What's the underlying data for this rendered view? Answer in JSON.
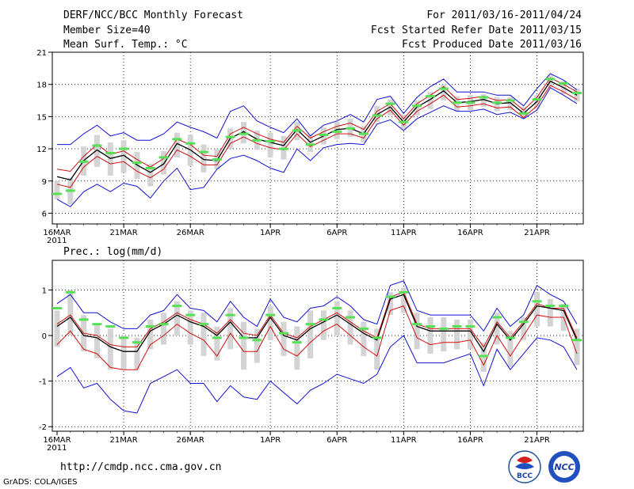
{
  "header": {
    "title": "DERF/NCC/BCC Monthly Forecast",
    "member": "Member Size=40",
    "variable1": "Mean Surf. Temp.: °C",
    "period": "For 2011/03/16-2011/04/24",
    "started": "Fcst Started Refer Date 2011/03/15",
    "produced": "Fcst Produced Date 2011/03/16"
  },
  "footer": {
    "url": "http://cmdp.ncc.cma.gov.cn",
    "grads": "GrADS: COLA/IGES",
    "logo1_text": "BCC",
    "logo2_text": "NCC"
  },
  "colors": {
    "envelope": "#1010d0",
    "spread": "#d01010",
    "mean": "#000000",
    "box": "#d4d4d4",
    "observed": "#55e055",
    "grid": "#000000"
  },
  "chart_data": [
    {
      "type": "line",
      "title": "Mean Surf. Temp.: °C",
      "xlabel": "",
      "ylabel": "°C",
      "ylim": [
        5,
        21
      ],
      "yticks": [
        6,
        9,
        12,
        15,
        18,
        21
      ],
      "x_tick_labels": [
        "16MAR\n2011",
        "21MAR",
        "26MAR",
        "1APR",
        "6APR",
        "11APR",
        "16APR",
        "21APR"
      ],
      "x_tick_days": [
        0,
        5,
        10,
        16,
        21,
        26,
        31,
        36
      ],
      "days": 40,
      "series": [
        {
          "name": "ensemble max",
          "values": [
            12.4,
            12.4,
            13.4,
            14.2,
            13.2,
            13.5,
            12.8,
            12.8,
            13.4,
            14.5,
            14.0,
            13.6,
            13.0,
            15.5,
            16.0,
            14.6,
            14.0,
            13.5,
            14.8,
            13.2,
            14.2,
            14.6,
            15.2,
            14.5,
            16.6,
            16.9,
            15.3,
            16.8,
            17.8,
            18.5,
            17.3,
            17.3,
            17.3,
            17.0,
            17.0,
            16.0,
            17.6,
            19.0,
            18.4,
            17.5
          ]
        },
        {
          "name": "upper spread",
          "values": [
            10.1,
            9.9,
            11.3,
            12.4,
            11.5,
            11.8,
            11.0,
            10.3,
            11.1,
            12.9,
            12.4,
            11.4,
            11.3,
            13.4,
            14.0,
            13.4,
            12.9,
            12.6,
            14.1,
            13.0,
            13.6,
            14.1,
            14.4,
            13.8,
            15.5,
            16.2,
            14.8,
            16.2,
            17.0,
            17.8,
            16.6,
            16.7,
            16.9,
            16.5,
            16.6,
            15.6,
            16.8,
            18.6,
            18.0,
            17.3
          ]
        },
        {
          "name": "ensemble mean",
          "values": [
            9.4,
            9.1,
            10.9,
            11.9,
            11.1,
            11.4,
            10.5,
            9.8,
            10.6,
            12.5,
            11.9,
            11.0,
            10.9,
            13.0,
            13.6,
            12.9,
            12.6,
            12.3,
            13.8,
            12.6,
            13.2,
            13.8,
            13.9,
            13.4,
            15.2,
            15.9,
            14.5,
            15.9,
            16.6,
            17.4,
            16.3,
            16.4,
            16.6,
            16.2,
            16.3,
            15.3,
            16.4,
            18.3,
            17.7,
            17.0
          ]
        },
        {
          "name": "lower spread",
          "values": [
            8.7,
            8.4,
            10.3,
            11.3,
            10.6,
            10.8,
            9.9,
            9.3,
            10.1,
            11.9,
            11.3,
            10.5,
            10.5,
            12.5,
            13.1,
            12.5,
            12.1,
            11.9,
            13.4,
            12.2,
            12.8,
            13.4,
            13.4,
            13.0,
            14.8,
            15.6,
            14.2,
            15.5,
            16.2,
            17.0,
            15.9,
            16.0,
            16.2,
            15.8,
            15.9,
            14.9,
            16.0,
            17.9,
            17.3,
            16.6
          ]
        },
        {
          "name": "ensemble min",
          "values": [
            7.3,
            6.6,
            8.0,
            8.7,
            8.0,
            8.8,
            8.5,
            7.4,
            9.0,
            10.2,
            8.2,
            8.4,
            10.1,
            11.1,
            11.4,
            10.9,
            10.2,
            9.8,
            12.0,
            10.9,
            12.1,
            12.4,
            12.5,
            12.4,
            14.3,
            14.7,
            13.7,
            14.8,
            15.4,
            16.0,
            15.5,
            15.5,
            15.7,
            15.2,
            15.4,
            14.8,
            15.6,
            17.7,
            17.0,
            16.2
          ]
        },
        {
          "name": "box high",
          "values": [
            9.0,
            9.3,
            12.2,
            13.3,
            12.6,
            12.8,
            11.7,
            10.6,
            11.8,
            13.5,
            13.3,
            12.4,
            12.0,
            13.9,
            14.5,
            13.7,
            13.5,
            13.2,
            14.5,
            13.3,
            14.0,
            14.5,
            14.8,
            14.1,
            16.0,
            16.6,
            15.2,
            16.5,
            17.3,
            18.0,
            16.9,
            17.0,
            17.1,
            16.8,
            16.8,
            15.9,
            17.0,
            18.9,
            18.3,
            17.6
          ]
        },
        {
          "name": "box low",
          "values": [
            7.3,
            6.8,
            9.5,
            10.3,
            9.5,
            9.8,
            9.2,
            8.5,
            9.6,
            11.2,
            10.4,
            9.8,
            10.1,
            12.0,
            12.5,
            11.9,
            11.2,
            11.0,
            12.8,
            11.7,
            12.4,
            12.9,
            13.1,
            12.6,
            14.5,
            15.1,
            13.8,
            15.1,
            15.7,
            16.5,
            15.5,
            15.6,
            15.9,
            15.5,
            15.6,
            14.8,
            15.7,
            17.8,
            17.1,
            16.4
          ]
        },
        {
          "name": "observed",
          "values": [
            7.8,
            8.1,
            10.8,
            12.3,
            11.6,
            12.0,
            10.7,
            10.2,
            11.2,
            12.9,
            12.5,
            11.7,
            11.0,
            13.1,
            13.4,
            12.8,
            12.7,
            12.0,
            13.7,
            12.4,
            13.3,
            13.6,
            13.9,
            13.4,
            15.1,
            16.2,
            14.5,
            16.0,
            16.9,
            17.6,
            16.3,
            16.3,
            16.8,
            16.3,
            16.5,
            15.3,
            16.6,
            18.5,
            18.1,
            17.2
          ]
        }
      ]
    },
    {
      "type": "line",
      "title": "Prec.: log(mm/d)",
      "xlabel": "",
      "ylabel": "log(mm/d)",
      "ylim": [
        -2.1,
        1.65
      ],
      "yticks": [
        -2,
        -1,
        0,
        1
      ],
      "x_tick_labels": [
        "16MAR\n2011",
        "21MAR",
        "26MAR",
        "1APR",
        "6APR",
        "11APR",
        "16APR",
        "21APR"
      ],
      "x_tick_days": [
        0,
        5,
        10,
        16,
        21,
        26,
        31,
        36
      ],
      "days": 40,
      "series": [
        {
          "name": "ensemble max",
          "values": [
            0.7,
            0.9,
            0.5,
            0.5,
            0.3,
            0.15,
            0.15,
            0.45,
            0.55,
            0.9,
            0.6,
            0.55,
            0.3,
            0.75,
            0.4,
            0.2,
            0.8,
            0.4,
            0.3,
            0.6,
            0.65,
            0.85,
            0.65,
            0.35,
            0.25,
            1.1,
            1.2,
            0.55,
            0.45,
            0.45,
            0.45,
            0.45,
            0.1,
            0.6,
            0.2,
            0.45,
            1.1,
            0.9,
            0.75,
            0.25
          ]
        },
        {
          "name": "upper spread",
          "values": [
            0.25,
            0.45,
            0.05,
            0.0,
            -0.2,
            -0.25,
            -0.25,
            0.15,
            0.3,
            0.5,
            0.35,
            0.25,
            0.05,
            0.35,
            0.05,
            0.0,
            0.45,
            0.05,
            -0.05,
            0.2,
            0.35,
            0.5,
            0.3,
            0.1,
            -0.05,
            0.85,
            0.95,
            0.25,
            0.15,
            0.15,
            0.15,
            0.15,
            -0.25,
            0.3,
            -0.05,
            0.3,
            0.7,
            0.6,
            0.6,
            -0.05
          ]
        },
        {
          "name": "ensemble mean",
          "values": [
            0.2,
            0.4,
            0.0,
            -0.05,
            -0.25,
            -0.35,
            -0.35,
            0.1,
            0.25,
            0.45,
            0.3,
            0.2,
            0.0,
            0.3,
            -0.05,
            -0.05,
            0.4,
            0.0,
            -0.1,
            0.15,
            0.3,
            0.45,
            0.25,
            0.05,
            -0.1,
            0.8,
            0.9,
            0.2,
            0.1,
            0.1,
            0.1,
            0.1,
            -0.35,
            0.25,
            -0.1,
            0.25,
            0.65,
            0.6,
            0.55,
            -0.1
          ]
        },
        {
          "name": "lower spread",
          "values": [
            -0.2,
            0.1,
            -0.3,
            -0.4,
            -0.7,
            -0.75,
            -0.75,
            -0.2,
            0.0,
            0.25,
            0.05,
            -0.1,
            -0.45,
            0.05,
            -0.35,
            -0.35,
            0.2,
            -0.3,
            -0.45,
            -0.15,
            0.1,
            0.25,
            0.0,
            -0.25,
            -0.45,
            0.55,
            0.65,
            -0.05,
            -0.2,
            -0.15,
            -0.15,
            -0.1,
            -0.65,
            0.0,
            -0.45,
            0.0,
            0.45,
            0.4,
            0.4,
            -0.4
          ]
        },
        {
          "name": "ensemble min",
          "values": [
            -0.9,
            -0.7,
            -1.15,
            -1.05,
            -1.4,
            -1.65,
            -1.7,
            -1.05,
            -0.9,
            -0.75,
            -1.05,
            -1.05,
            -1.45,
            -1.1,
            -1.35,
            -1.4,
            -1.0,
            -1.25,
            -1.5,
            -1.2,
            -1.05,
            -0.85,
            -0.95,
            -1.05,
            -0.85,
            -0.25,
            -0.0,
            -0.6,
            -0.6,
            -0.6,
            -0.5,
            -0.4,
            -1.1,
            -0.3,
            -0.75,
            -0.4,
            -0.05,
            -0.1,
            -0.25,
            -0.75
          ]
        },
        {
          "name": "box high",
          "values": [
            0.55,
            1.0,
            0.45,
            0.25,
            0.15,
            0.0,
            -0.05,
            0.35,
            0.5,
            0.75,
            0.55,
            0.5,
            0.2,
            0.6,
            0.3,
            0.15,
            0.65,
            0.3,
            0.2,
            0.55,
            0.55,
            0.75,
            0.55,
            0.3,
            0.15,
            0.95,
            1.05,
            0.5,
            0.4,
            0.4,
            0.35,
            0.35,
            -0.15,
            0.5,
            0.1,
            0.4,
            0.95,
            0.8,
            0.7,
            0.15
          ]
        },
        {
          "name": "box low",
          "values": [
            -0.25,
            0.0,
            -0.35,
            -0.5,
            -0.75,
            -0.75,
            -0.75,
            -0.3,
            -0.2,
            0.0,
            -0.2,
            -0.45,
            -0.55,
            -0.3,
            -0.75,
            -0.6,
            -0.1,
            -0.45,
            -0.75,
            -0.5,
            -0.1,
            0.0,
            -0.2,
            -0.45,
            -0.75,
            0.45,
            0.5,
            -0.3,
            -0.4,
            -0.35,
            -0.3,
            -0.3,
            -0.8,
            -0.2,
            -0.7,
            -0.1,
            0.2,
            0.2,
            0.1,
            -0.65
          ]
        },
        {
          "name": "observed",
          "values": [
            0.6,
            0.95,
            0.35,
            0.25,
            0.2,
            -0.05,
            -0.15,
            0.2,
            0.25,
            0.65,
            0.45,
            0.25,
            -0.05,
            0.45,
            -0.05,
            -0.1,
            0.45,
            0.05,
            -0.15,
            0.25,
            0.35,
            0.6,
            0.4,
            0.15,
            -0.05,
            0.85,
            0.95,
            0.25,
            0.2,
            0.15,
            0.2,
            0.2,
            -0.45,
            0.4,
            -0.05,
            0.3,
            0.75,
            0.65,
            0.65,
            -0.1
          ]
        }
      ]
    }
  ]
}
